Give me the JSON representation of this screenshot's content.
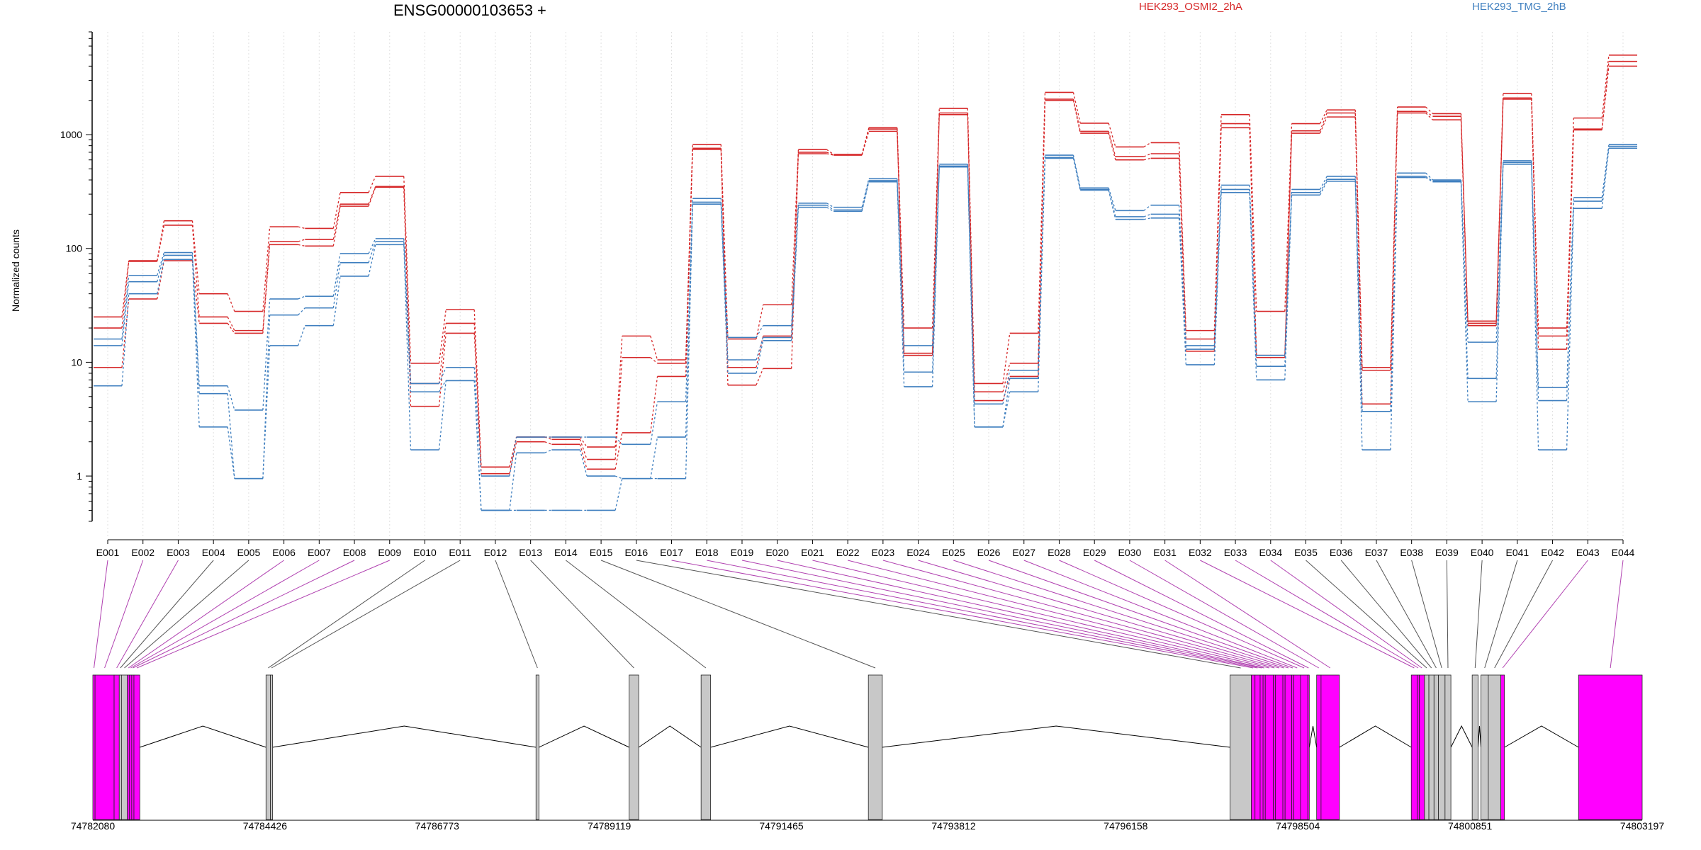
{
  "chart_data": {
    "type": "line",
    "title": "ENSG00000103653 +",
    "ylabel": "Normalized counts",
    "xlabel": "",
    "yscale": "log",
    "ylim": [
      0.4,
      8000
    ],
    "yticks": [
      1,
      10,
      100,
      1000
    ],
    "ytick_labels": [
      "1",
      "10",
      "100",
      "1000"
    ],
    "grid": "vertical dotted at exon centers",
    "legend": [
      {
        "name": "HEK293_OSMI2_2hA",
        "color": "#d62728",
        "position": "top-center"
      },
      {
        "name": "HEK293_TMG_2hB",
        "color": "#3f7fbf",
        "position": "top-right"
      }
    ],
    "categories": [
      "E001",
      "E002",
      "E003",
      "E004",
      "E005",
      "E006",
      "E007",
      "E008",
      "E009",
      "E010",
      "E011",
      "E012",
      "E013",
      "E014",
      "E015",
      "E016",
      "E017",
      "E018",
      "E019",
      "E020",
      "E021",
      "E022",
      "E023",
      "E024",
      "E025",
      "E026",
      "E027",
      "E028",
      "E029",
      "E030",
      "E031",
      "E032",
      "E033",
      "E034",
      "E035",
      "E036",
      "E037",
      "E038",
      "E039",
      "E040",
      "E041",
      "E042",
      "E043",
      "E044"
    ],
    "series": [
      {
        "group": "HEK293_OSMI2_2hA",
        "color": "#d62728",
        "values": [
          25,
          78,
          175,
          40,
          28,
          155,
          150,
          310,
          430,
          9.8,
          29,
          1.2,
          2.2,
          2.2,
          1.8,
          17,
          10.5,
          820,
          16,
          32,
          740,
          670,
          1150,
          20,
          1700,
          6.5,
          18,
          2350,
          1260,
          780,
          850,
          19,
          1500,
          28,
          1250,
          1650,
          9,
          1750,
          1530,
          23,
          2300,
          20,
          1400,
          5000
        ]
      },
      {
        "group": "HEK293_OSMI2_2hA",
        "color": "#d62728",
        "values": [
          20,
          77,
          160,
          25,
          19,
          115,
          120,
          245,
          350,
          6.5,
          22,
          1.2,
          2.2,
          2.1,
          1.4,
          11,
          9.8,
          760,
          9,
          17,
          700,
          665,
          1120,
          12,
          1550,
          5.5,
          9.8,
          2050,
          1070,
          640,
          680,
          16,
          1250,
          11.5,
          1080,
          1550,
          8.5,
          1600,
          1450,
          22,
          2100,
          17,
          1120,
          4400
        ]
      },
      {
        "group": "HEK293_OSMI2_2hA",
        "color": "#d62728",
        "values": [
          9,
          36,
          78,
          22,
          18,
          108,
          105,
          235,
          345,
          4.1,
          18,
          1.05,
          2.0,
          1.9,
          1.15,
          2.4,
          7.5,
          740,
          6.3,
          8.8,
          680,
          660,
          1070,
          11.5,
          1500,
          4.6,
          7.5,
          2000,
          1030,
          600,
          620,
          12.5,
          1150,
          11,
          1030,
          1430,
          4.3,
          1550,
          1350,
          21,
          2050,
          13,
          1100,
          4000
        ]
      },
      {
        "group": "HEK293_TMG_2hB",
        "color": "#3f7fbf",
        "values": [
          16,
          58,
          92,
          6.2,
          3.8,
          36,
          38,
          90,
          122,
          6.5,
          9,
          1.0,
          2.2,
          2.2,
          2.2,
          1.9,
          4.5,
          275,
          16.5,
          21,
          250,
          230,
          410,
          14,
          550,
          4.3,
          8.5,
          660,
          340,
          215,
          240,
          14,
          360,
          11.5,
          330,
          430,
          3.7,
          460,
          400,
          15,
          590,
          6,
          280,
          820
        ]
      },
      {
        "group": "HEK293_TMG_2hB",
        "color": "#3f7fbf",
        "values": [
          14,
          51,
          87,
          5.3,
          0.95,
          26,
          30,
          75,
          115,
          5.5,
          6.9,
          0.5,
          1.6,
          1.7,
          1.0,
          0.95,
          2.2,
          255,
          10.5,
          16.5,
          240,
          218,
          395,
          8.2,
          530,
          2.7,
          7.2,
          630,
          330,
          190,
          200,
          13,
          330,
          9.2,
          310,
          405,
          3.7,
          430,
          390,
          7.2,
          570,
          4.6,
          260,
          790
        ]
      },
      {
        "group": "HEK293_TMG_2hB",
        "color": "#3f7fbf",
        "values": [
          6.2,
          40,
          80,
          2.7,
          0.95,
          14,
          21,
          57,
          108,
          1.7,
          6.9,
          0.5,
          0.5,
          0.5,
          0.5,
          0.95,
          0.95,
          245,
          8,
          15.5,
          230,
          212,
          385,
          6.1,
          520,
          2.7,
          5.5,
          620,
          325,
          180,
          185,
          9.5,
          310,
          7,
          295,
          390,
          1.7,
          420,
          385,
          4.5,
          550,
          1.7,
          225,
          760
        ]
      }
    ]
  },
  "gene_model": {
    "coordinate_labels": [
      "74782080",
      "74784426",
      "74786773",
      "74789119",
      "74791465",
      "74793812",
      "74796158",
      "74798504",
      "74800851",
      "74803197"
    ],
    "exons": [
      {
        "id": "E001",
        "start": 74782080,
        "end": 74782110,
        "fill": "#ff00ff",
        "highlighted": true
      },
      {
        "id": "E002",
        "start": 74782110,
        "end": 74782370,
        "fill": "#ff00ff",
        "highlighted": true
      },
      {
        "id": "E003",
        "start": 74782370,
        "end": 74782440,
        "fill": "#ff00ff",
        "highlighted": true
      },
      {
        "id": "E004",
        "start": 74782440,
        "end": 74782470,
        "fill": "#c8c8c8",
        "highlighted": false
      },
      {
        "id": "E005",
        "start": 74782470,
        "end": 74782550,
        "fill": "#c8c8c8",
        "highlighted": false
      },
      {
        "id": "E006",
        "start": 74782550,
        "end": 74782580,
        "fill": "#ff00ff",
        "highlighted": true
      },
      {
        "id": "E007",
        "start": 74782580,
        "end": 74782610,
        "fill": "#ff00ff",
        "highlighted": true
      },
      {
        "id": "E008",
        "start": 74782610,
        "end": 74782640,
        "fill": "#ff00ff",
        "highlighted": true
      },
      {
        "id": "E009",
        "start": 74782640,
        "end": 74782720,
        "fill": "#ff00ff",
        "highlighted": true
      },
      {
        "id": "E010",
        "start": 74784440,
        "end": 74784500,
        "fill": "#c8c8c8",
        "highlighted": false
      },
      {
        "id": "E011",
        "start": 74784500,
        "end": 74784530,
        "fill": "#c8c8c8",
        "highlighted": false
      },
      {
        "id": "E012",
        "start": 74788120,
        "end": 74788160,
        "fill": "#c8c8c8",
        "highlighted": false
      },
      {
        "id": "E013",
        "start": 74789390,
        "end": 74789520,
        "fill": "#c8c8c8",
        "highlighted": false
      },
      {
        "id": "E014",
        "start": 74790370,
        "end": 74790500,
        "fill": "#c8c8c8",
        "highlighted": false
      },
      {
        "id": "E015",
        "start": 74792650,
        "end": 74792840,
        "fill": "#c8c8c8",
        "highlighted": false
      },
      {
        "id": "E016",
        "start": 74797580,
        "end": 74797870,
        "fill": "#c8c8c8",
        "highlighted": false
      },
      {
        "id": "E017",
        "start": 74797870,
        "end": 74797920,
        "fill": "#ff00ff",
        "highlighted": true
      },
      {
        "id": "E018",
        "start": 74797920,
        "end": 74797990,
        "fill": "#ff00ff",
        "highlighted": true
      },
      {
        "id": "E019",
        "start": 74797990,
        "end": 74798030,
        "fill": "#ff00ff",
        "highlighted": true
      },
      {
        "id": "E020",
        "start": 74798030,
        "end": 74798060,
        "fill": "#ff00ff",
        "highlighted": true
      },
      {
        "id": "E021",
        "start": 74798060,
        "end": 74798170,
        "fill": "#ff00ff",
        "highlighted": true
      },
      {
        "id": "E022",
        "start": 74798170,
        "end": 74798200,
        "fill": "#ff00ff",
        "highlighted": true
      },
      {
        "id": "E023",
        "start": 74798200,
        "end": 74798300,
        "fill": "#ff00ff",
        "highlighted": true
      },
      {
        "id": "E024",
        "start": 74798300,
        "end": 74798330,
        "fill": "#ff00ff",
        "highlighted": true
      },
      {
        "id": "E025",
        "start": 74798330,
        "end": 74798420,
        "fill": "#ff00ff",
        "highlighted": true
      },
      {
        "id": "E026",
        "start": 74798420,
        "end": 74798450,
        "fill": "#ff00ff",
        "highlighted": true
      },
      {
        "id": "E027",
        "start": 74798450,
        "end": 74798540,
        "fill": "#ff00ff",
        "highlighted": true
      },
      {
        "id": "E028",
        "start": 74798540,
        "end": 74798640,
        "fill": "#ff00ff",
        "highlighted": true
      },
      {
        "id": "E029",
        "start": 74798640,
        "end": 74798660,
        "fill": "#ff00ff",
        "highlighted": true
      },
      {
        "id": "E030",
        "start": 74798760,
        "end": 74798820,
        "fill": "#ff00ff",
        "highlighted": true
      },
      {
        "id": "E031",
        "start": 74798820,
        "end": 74799070,
        "fill": "#ff00ff",
        "highlighted": true
      },
      {
        "id": "E032",
        "start": 74800050,
        "end": 74800130,
        "fill": "#ff00ff",
        "highlighted": true
      },
      {
        "id": "E033",
        "start": 74800130,
        "end": 74800160,
        "fill": "#ff00ff",
        "highlighted": true
      },
      {
        "id": "E034",
        "start": 74800160,
        "end": 74800230,
        "fill": "#ff00ff",
        "highlighted": true
      },
      {
        "id": "E035",
        "start": 74800230,
        "end": 74800290,
        "fill": "#c8c8c8",
        "highlighted": false
      },
      {
        "id": "E036",
        "start": 74800290,
        "end": 74800360,
        "fill": "#c8c8c8",
        "highlighted": false
      },
      {
        "id": "E037",
        "start": 74800360,
        "end": 74800420,
        "fill": "#c8c8c8",
        "highlighted": false
      },
      {
        "id": "E038",
        "start": 74800420,
        "end": 74800510,
        "fill": "#c8c8c8",
        "highlighted": false
      },
      {
        "id": "E039",
        "start": 74800510,
        "end": 74800590,
        "fill": "#c8c8c8",
        "highlighted": false
      },
      {
        "id": "E040",
        "start": 74800880,
        "end": 74800960,
        "fill": "#c8c8c8",
        "highlighted": false
      },
      {
        "id": "E041",
        "start": 74801000,
        "end": 74801100,
        "fill": "#c8c8c8",
        "highlighted": false
      },
      {
        "id": "E042",
        "start": 74801100,
        "end": 74801270,
        "fill": "#c8c8c8",
        "highlighted": false
      },
      {
        "id": "E043",
        "start": 74801270,
        "end": 74801320,
        "fill": "#ff00ff",
        "highlighted": true
      },
      {
        "id": "E044",
        "start": 74802330,
        "end": 74803197,
        "fill": "#ff00ff",
        "highlighted": true
      }
    ]
  }
}
